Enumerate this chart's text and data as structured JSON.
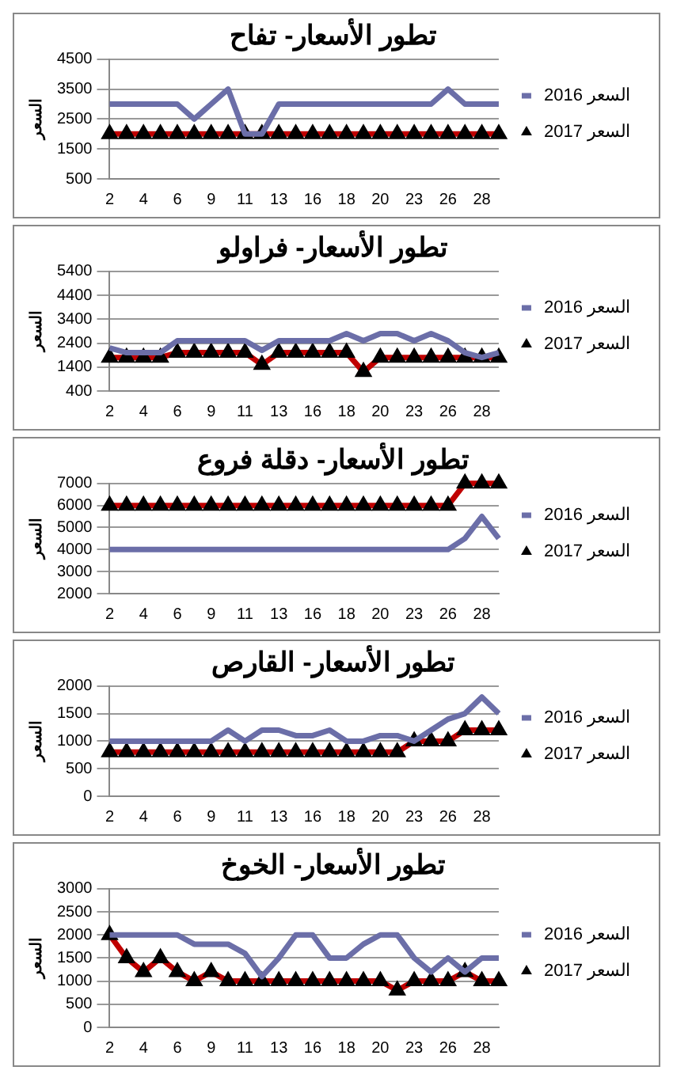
{
  "chart_data": [
    {
      "type": "line",
      "title": "تطور الأسعار- تفاح",
      "ylabel": "السعر",
      "categories": [
        "2",
        null,
        "4",
        null,
        "6",
        null,
        "9",
        null,
        "11",
        null,
        "13",
        null,
        "16",
        null,
        "18",
        null,
        "20",
        null,
        "23",
        null,
        "26",
        null,
        "28",
        null
      ],
      "ylim": [
        500,
        4500
      ],
      "yticks": [
        500,
        1500,
        2500,
        3500,
        4500
      ],
      "grid": "y",
      "legend": "right",
      "series": [
        {
          "name": "السعر 2016",
          "color": "#6b6ea8",
          "marker": "none",
          "values": [
            3000,
            3000,
            3000,
            3000,
            3000,
            2500,
            3000,
            3500,
            2000,
            2000,
            3000,
            3000,
            3000,
            3000,
            3000,
            3000,
            3000,
            3000,
            3000,
            3000,
            3500,
            3000,
            3000,
            3000
          ]
        },
        {
          "name": "السعر 2017",
          "color": "#c00000",
          "marker": "triangle",
          "values": [
            2000,
            2000,
            2000,
            2000,
            2000,
            2000,
            2000,
            2000,
            2000,
            2000,
            2000,
            2000,
            2000,
            2000,
            2000,
            2000,
            2000,
            2000,
            2000,
            2000,
            2000,
            2000,
            2000,
            2000
          ]
        }
      ]
    },
    {
      "type": "line",
      "title": "تطور الأسعار- فراولو",
      "ylabel": "السعر",
      "categories": [
        "2",
        null,
        "4",
        null,
        "6",
        null,
        "9",
        null,
        "11",
        null,
        "13",
        null,
        "16",
        null,
        "18",
        null,
        "20",
        null,
        "23",
        null,
        "26",
        null,
        "28",
        null
      ],
      "ylim": [
        400,
        5400
      ],
      "yticks": [
        400,
        1400,
        2400,
        3400,
        4400,
        5400
      ],
      "grid": "y",
      "legend": "right",
      "series": [
        {
          "name": "السعر 2016",
          "color": "#6b6ea8",
          "marker": "none",
          "values": [
            2200,
            2000,
            2000,
            2000,
            2500,
            2500,
            2500,
            2500,
            2500,
            2100,
            2500,
            2500,
            2500,
            2500,
            2800,
            2500,
            2800,
            2800,
            2500,
            2800,
            2500,
            2000,
            1800,
            2000
          ]
        },
        {
          "name": "السعر 2017",
          "color": "#c00000",
          "marker": "triangle",
          "values": [
            1800,
            1800,
            1800,
            1800,
            2000,
            2000,
            2000,
            2000,
            2000,
            1500,
            2000,
            2000,
            2000,
            2000,
            2000,
            1200,
            1800,
            1800,
            1800,
            1800,
            1800,
            1800,
            1800,
            1800
          ]
        }
      ]
    },
    {
      "type": "line",
      "title": "تطور الأسعار- دقلة فروع",
      "ylabel": "السعر",
      "categories": [
        "2",
        null,
        "4",
        null,
        "6",
        null,
        "9",
        null,
        "11",
        null,
        "13",
        null,
        "16",
        null,
        "18",
        null,
        "20",
        null,
        "23",
        null,
        "26",
        null,
        "28",
        null
      ],
      "ylim": [
        2000,
        7000
      ],
      "yticks": [
        2000,
        3000,
        4000,
        5000,
        6000,
        7000
      ],
      "grid": "y",
      "legend": "right",
      "series": [
        {
          "name": "السعر 2016",
          "color": "#6b6ea8",
          "marker": "none",
          "values": [
            4000,
            4000,
            4000,
            4000,
            4000,
            4000,
            4000,
            4000,
            4000,
            4000,
            4000,
            4000,
            4000,
            4000,
            4000,
            4000,
            4000,
            4000,
            4000,
            4000,
            4000,
            4500,
            5500,
            4500
          ]
        },
        {
          "name": "السعر 2017",
          "color": "#c00000",
          "marker": "triangle",
          "values": [
            6000,
            6000,
            6000,
            6000,
            6000,
            6000,
            6000,
            6000,
            6000,
            6000,
            6000,
            6000,
            6000,
            6000,
            6000,
            6000,
            6000,
            6000,
            6000,
            6000,
            6000,
            7000,
            7000,
            7000
          ]
        }
      ]
    },
    {
      "type": "line",
      "title": "تطور الأسعار- القارص",
      "ylabel": "السعر",
      "categories": [
        "2",
        null,
        "4",
        null,
        "6",
        null,
        "9",
        null,
        "11",
        null,
        "13",
        null,
        "16",
        null,
        "18",
        null,
        "20",
        null,
        "23",
        null,
        "26",
        null,
        "28",
        null
      ],
      "ylim": [
        0,
        2000
      ],
      "yticks": [
        0,
        500,
        1000,
        1500,
        2000
      ],
      "grid": "y",
      "legend": "right",
      "series": [
        {
          "name": "السعر 2016",
          "color": "#6b6ea8",
          "marker": "none",
          "values": [
            1000,
            1000,
            1000,
            1000,
            1000,
            1000,
            1000,
            1200,
            1000,
            1200,
            1200,
            1100,
            1100,
            1200,
            1000,
            1000,
            1100,
            1100,
            1000,
            1200,
            1400,
            1500,
            1800,
            1500
          ]
        },
        {
          "name": "السعر 2017",
          "color": "#c00000",
          "marker": "triangle",
          "values": [
            800,
            800,
            800,
            800,
            800,
            800,
            800,
            800,
            800,
            800,
            800,
            800,
            800,
            800,
            800,
            800,
            800,
            800,
            1000,
            1000,
            1000,
            1200,
            1200,
            1200
          ]
        }
      ]
    },
    {
      "type": "line",
      "title": "تطور الأسعار- الخوخ",
      "ylabel": "السعر",
      "categories": [
        "2",
        null,
        "4",
        null,
        "6",
        null,
        "9",
        null,
        "11",
        null,
        "13",
        null,
        "16",
        null,
        "18",
        null,
        "20",
        null,
        "23",
        null,
        "26",
        null,
        "28",
        null
      ],
      "ylim": [
        0,
        3000
      ],
      "yticks": [
        0,
        500,
        1000,
        1500,
        2000,
        2500,
        3000
      ],
      "grid": "y",
      "legend": "right",
      "series": [
        {
          "name": "السعر 2016",
          "color": "#6b6ea8",
          "marker": "none",
          "values": [
            2000,
            2000,
            2000,
            2000,
            2000,
            1800,
            1800,
            1800,
            1600,
            1100,
            1500,
            2000,
            2000,
            1500,
            1500,
            1800,
            2000,
            2000,
            1500,
            1200,
            1500,
            1200,
            1500,
            1500
          ]
        },
        {
          "name": "السعر 2017",
          "color": "#c00000",
          "marker": "triangle",
          "values": [
            2000,
            1500,
            1200,
            1500,
            1200,
            1000,
            1200,
            1000,
            1000,
            1000,
            1000,
            1000,
            1000,
            1000,
            1000,
            1000,
            1000,
            800,
            1000,
            1000,
            1000,
            1200,
            1000,
            1000
          ]
        }
      ]
    }
  ]
}
